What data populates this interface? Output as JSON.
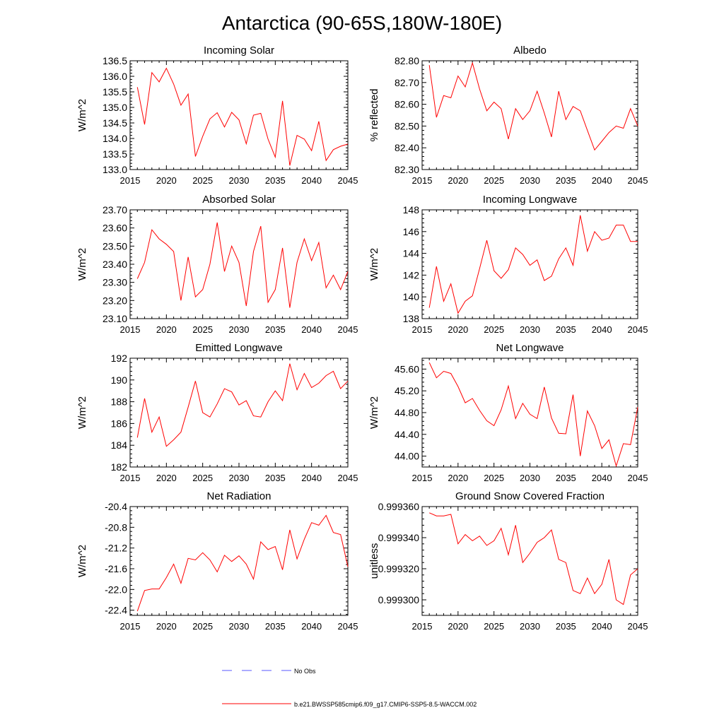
{
  "figure_title": "Antarctica (90-65S,180W-180E)",
  "legend": {
    "no_obs_label": "No Obs",
    "model_label": "b.e21.BWSSP585cmip6.f09_g17.CMIP6-SSP5-8.5-WACCM.002",
    "no_obs_color": "#5a5aff",
    "model_color": "#ff0000"
  },
  "chart_data": [
    {
      "type": "line",
      "title": "Incoming Solar",
      "xlabel": "",
      "ylabel": "W/m^2",
      "xlim": [
        2015,
        2045
      ],
      "ylim": [
        133.0,
        136.5
      ],
      "xticks": [
        2015,
        2020,
        2025,
        2030,
        2035,
        2040,
        2045
      ],
      "xticklabels": [
        "2015",
        "2020",
        "2025",
        "2030",
        "2035",
        "2040",
        "2045"
      ],
      "yticks": [
        133.0,
        133.5,
        134.0,
        134.5,
        135.0,
        135.5,
        136.0,
        136.5
      ],
      "yticklabels": [
        "133.0",
        "133.5",
        "134.0",
        "134.5",
        "135.0",
        "135.5",
        "136.0",
        "136.5"
      ],
      "x": [
        2016,
        2017,
        2018,
        2019,
        2020,
        2021,
        2022,
        2023,
        2024,
        2025,
        2026,
        2027,
        2028,
        2029,
        2030,
        2031,
        2032,
        2033,
        2034,
        2035,
        2036,
        2037,
        2038,
        2039,
        2040,
        2041,
        2042,
        2043,
        2044,
        2045
      ],
      "series": [
        {
          "name": "b.e21.BWSSP585cmip6.f09_g17.CMIP6-SSP5-8.5-WACCM.002",
          "values": [
            135.65,
            134.45,
            136.12,
            135.82,
            136.26,
            135.75,
            135.07,
            135.43,
            133.42,
            134.07,
            134.63,
            134.83,
            134.37,
            134.84,
            134.6,
            133.83,
            134.75,
            134.81,
            133.98,
            133.4,
            135.21,
            133.13,
            134.1,
            133.98,
            133.61,
            134.55,
            133.29,
            133.64,
            133.75,
            133.82
          ]
        }
      ]
    },
    {
      "type": "line",
      "title": "Albedo",
      "xlabel": "",
      "ylabel": "% reflected",
      "xlim": [
        2015,
        2045
      ],
      "ylim": [
        82.3,
        82.8
      ],
      "xticks": [
        2015,
        2020,
        2025,
        2030,
        2035,
        2040,
        2045
      ],
      "xticklabels": [
        "2015",
        "2020",
        "2025",
        "2030",
        "2035",
        "2040",
        "2045"
      ],
      "yticks": [
        82.3,
        82.4,
        82.5,
        82.6,
        82.7,
        82.8
      ],
      "yticklabels": [
        "82.30",
        "82.40",
        "82.50",
        "82.60",
        "82.70",
        "82.80"
      ],
      "x": [
        2016,
        2017,
        2018,
        2019,
        2020,
        2021,
        2022,
        2023,
        2024,
        2025,
        2026,
        2027,
        2028,
        2029,
        2030,
        2031,
        2032,
        2033,
        2034,
        2035,
        2036,
        2037,
        2038,
        2039,
        2040,
        2041,
        2042,
        2043,
        2044,
        2045
      ],
      "series": [
        {
          "name": "b.e21.BWSSP585cmip6.f09_g17.CMIP6-SSP5-8.5-WACCM.002",
          "values": [
            82.78,
            82.54,
            82.64,
            82.63,
            82.73,
            82.68,
            82.79,
            82.67,
            82.57,
            82.61,
            82.58,
            82.44,
            82.58,
            82.53,
            82.57,
            82.66,
            82.56,
            82.45,
            82.66,
            82.53,
            82.59,
            82.57,
            82.48,
            82.39,
            82.43,
            82.47,
            82.5,
            82.49,
            82.58,
            82.5
          ]
        }
      ]
    },
    {
      "type": "line",
      "title": "Absorbed Solar",
      "xlabel": "",
      "ylabel": "W/m^2",
      "xlim": [
        2015,
        2045
      ],
      "ylim": [
        23.1,
        23.7
      ],
      "xticks": [
        2015,
        2020,
        2025,
        2030,
        2035,
        2040,
        2045
      ],
      "xticklabels": [
        "2015",
        "2020",
        "2025",
        "2030",
        "2035",
        "2040",
        "2045"
      ],
      "yticks": [
        23.1,
        23.2,
        23.3,
        23.4,
        23.5,
        23.6,
        23.7
      ],
      "yticklabels": [
        "23.10",
        "23.20",
        "23.30",
        "23.40",
        "23.50",
        "23.60",
        "23.70"
      ],
      "x": [
        2016,
        2017,
        2018,
        2019,
        2020,
        2021,
        2022,
        2023,
        2024,
        2025,
        2026,
        2027,
        2028,
        2029,
        2030,
        2031,
        2032,
        2033,
        2034,
        2035,
        2036,
        2037,
        2038,
        2039,
        2040,
        2041,
        2042,
        2043,
        2044,
        2045
      ],
      "series": [
        {
          "name": "b.e21.BWSSP585cmip6.f09_g17.CMIP6-SSP5-8.5-WACCM.002",
          "values": [
            23.32,
            23.41,
            23.59,
            23.54,
            23.51,
            23.47,
            23.2,
            23.44,
            23.22,
            23.26,
            23.4,
            23.63,
            23.36,
            23.5,
            23.41,
            23.17,
            23.47,
            23.61,
            23.19,
            23.26,
            23.49,
            23.16,
            23.41,
            23.54,
            23.42,
            23.52,
            23.27,
            23.34,
            23.26,
            23.36
          ]
        }
      ]
    },
    {
      "type": "line",
      "title": "Incoming Longwave",
      "xlabel": "",
      "ylabel": "W/m^2",
      "xlim": [
        2015,
        2045
      ],
      "ylim": [
        138,
        148
      ],
      "xticks": [
        2015,
        2020,
        2025,
        2030,
        2035,
        2040,
        2045
      ],
      "xticklabels": [
        "2015",
        "2020",
        "2025",
        "2030",
        "2035",
        "2040",
        "2045"
      ],
      "yticks": [
        138,
        140,
        142,
        144,
        146,
        148
      ],
      "yticklabels": [
        "138",
        "140",
        "142",
        "144",
        "146",
        "148"
      ],
      "x": [
        2016,
        2017,
        2018,
        2019,
        2020,
        2021,
        2022,
        2023,
        2024,
        2025,
        2026,
        2027,
        2028,
        2029,
        2030,
        2031,
        2032,
        2033,
        2034,
        2035,
        2036,
        2037,
        2038,
        2039,
        2040,
        2041,
        2042,
        2043,
        2044,
        2045
      ],
      "series": [
        {
          "name": "b.e21.BWSSP585cmip6.f09_g17.CMIP6-SSP5-8.5-WACCM.002",
          "values": [
            139.0,
            142.8,
            139.6,
            141.2,
            138.5,
            139.6,
            140.1,
            142.6,
            145.2,
            142.4,
            141.7,
            142.5,
            144.5,
            143.9,
            142.9,
            143.4,
            141.5,
            141.9,
            143.5,
            144.5,
            142.9,
            147.5,
            144.2,
            146.0,
            145.2,
            145.4,
            146.6,
            146.6,
            145.1,
            145.1
          ]
        }
      ]
    },
    {
      "type": "line",
      "title": "Emitted Longwave",
      "xlabel": "",
      "ylabel": "W/m^2",
      "xlim": [
        2015,
        2045
      ],
      "ylim": [
        182,
        192
      ],
      "xticks": [
        2015,
        2020,
        2025,
        2030,
        2035,
        2040,
        2045
      ],
      "xticklabels": [
        "2015",
        "2020",
        "2025",
        "2030",
        "2035",
        "2040",
        "2045"
      ],
      "yticks": [
        182,
        184,
        186,
        188,
        190,
        192
      ],
      "yticklabels": [
        "182",
        "184",
        "186",
        "188",
        "190",
        "192"
      ],
      "x": [
        2016,
        2017,
        2018,
        2019,
        2020,
        2021,
        2022,
        2023,
        2024,
        2025,
        2026,
        2027,
        2028,
        2029,
        2030,
        2031,
        2032,
        2033,
        2034,
        2035,
        2036,
        2037,
        2038,
        2039,
        2040,
        2041,
        2042,
        2043,
        2044,
        2045
      ],
      "series": [
        {
          "name": "b.e21.BWSSP585cmip6.f09_g17.CMIP6-SSP5-8.5-WACCM.002",
          "values": [
            184.7,
            188.3,
            185.2,
            186.6,
            183.9,
            184.5,
            185.2,
            187.5,
            189.9,
            187.0,
            186.6,
            187.8,
            189.2,
            188.9,
            187.7,
            188.1,
            186.7,
            186.6,
            188.0,
            189.0,
            188.1,
            191.5,
            189.1,
            190.6,
            189.3,
            189.7,
            190.4,
            190.8,
            189.2,
            189.9
          ]
        }
      ]
    },
    {
      "type": "line",
      "title": "Net Longwave",
      "xlabel": "",
      "ylabel": "W/m^2",
      "xlim": [
        2015,
        2045
      ],
      "ylim": [
        43.8,
        45.8
      ],
      "xticks": [
        2015,
        2020,
        2025,
        2030,
        2035,
        2040,
        2045
      ],
      "xticklabels": [
        "2015",
        "2020",
        "2025",
        "2030",
        "2035",
        "2040",
        "2045"
      ],
      "yticks": [
        44.0,
        44.4,
        44.8,
        45.2,
        45.6
      ],
      "yticklabels": [
        "44.00",
        "44.40",
        "44.80",
        "45.20",
        "45.60"
      ],
      "x": [
        2016,
        2017,
        2018,
        2019,
        2020,
        2021,
        2022,
        2023,
        2024,
        2025,
        2026,
        2027,
        2028,
        2029,
        2030,
        2031,
        2032,
        2033,
        2034,
        2035,
        2036,
        2037,
        2038,
        2039,
        2040,
        2041,
        2042,
        2043,
        2044,
        2045
      ],
      "series": [
        {
          "name": "b.e21.BWSSP585cmip6.f09_g17.CMIP6-SSP5-8.5-WACCM.002",
          "values": [
            45.72,
            45.44,
            45.56,
            45.52,
            45.28,
            44.98,
            45.06,
            44.84,
            44.65,
            44.56,
            44.85,
            45.29,
            44.69,
            44.97,
            44.77,
            44.69,
            45.27,
            44.7,
            44.42,
            44.41,
            45.13,
            44.0,
            44.83,
            44.56,
            44.14,
            44.3,
            43.82,
            44.23,
            44.21,
            44.9
          ]
        }
      ]
    },
    {
      "type": "line",
      "title": "Net Radiation",
      "xlabel": "",
      "ylabel": "W/m^2",
      "xlim": [
        2015,
        2045
      ],
      "ylim": [
        -22.5,
        -20.4
      ],
      "xticks": [
        2015,
        2020,
        2025,
        2030,
        2035,
        2040,
        2045
      ],
      "xticklabels": [
        "2015",
        "2020",
        "2025",
        "2030",
        "2035",
        "2040",
        "2045"
      ],
      "yticks": [
        -22.4,
        -22.0,
        -21.6,
        -21.2,
        -20.8,
        -20.4
      ],
      "yticklabels": [
        "-22.4",
        "-22.0",
        "-21.6",
        "-21.2",
        "-20.8",
        "-20.4"
      ],
      "x": [
        2016,
        2017,
        2018,
        2019,
        2020,
        2021,
        2022,
        2023,
        2024,
        2025,
        2026,
        2027,
        2028,
        2029,
        2030,
        2031,
        2032,
        2033,
        2034,
        2035,
        2036,
        2037,
        2038,
        2039,
        2040,
        2041,
        2042,
        2043,
        2044,
        2045
      ],
      "series": [
        {
          "name": "b.e21.BWSSP585cmip6.f09_g17.CMIP6-SSP5-8.5-WACCM.002",
          "values": [
            -22.42,
            -22.02,
            -21.99,
            -21.99,
            -21.77,
            -21.51,
            -21.88,
            -21.4,
            -21.43,
            -21.29,
            -21.43,
            -21.66,
            -21.34,
            -21.46,
            -21.35,
            -21.51,
            -21.8,
            -21.08,
            -21.23,
            -21.17,
            -21.62,
            -20.85,
            -21.41,
            -21.03,
            -20.71,
            -20.76,
            -20.57,
            -20.9,
            -20.94,
            -21.56
          ]
        }
      ]
    },
    {
      "type": "line",
      "title": "Ground Snow Covered Fraction",
      "xlabel": "",
      "ylabel": "unitless",
      "xlim": [
        2015,
        2045
      ],
      "ylim": [
        0.99929,
        0.99936
      ],
      "xticks": [
        2015,
        2020,
        2025,
        2030,
        2035,
        2040,
        2045
      ],
      "xticklabels": [
        "2015",
        "2020",
        "2025",
        "2030",
        "2035",
        "2040",
        "2045"
      ],
      "yticks": [
        0.9993,
        0.99932,
        0.99934,
        0.99936
      ],
      "yticklabels": [
        "0.999300",
        "0.999320",
        "0.999340",
        "0.999360"
      ],
      "x": [
        2016,
        2017,
        2018,
        2019,
        2020,
        2021,
        2022,
        2023,
        2024,
        2025,
        2026,
        2027,
        2028,
        2029,
        2030,
        2031,
        2032,
        2033,
        2034,
        2035,
        2036,
        2037,
        2038,
        2039,
        2040,
        2041,
        2042,
        2043,
        2044,
        2045
      ],
      "series": [
        {
          "name": "b.e21.BWSSP585cmip6.f09_g17.CMIP6-SSP5-8.5-WACCM.002",
          "values": [
            0.999356,
            0.999354,
            0.999354,
            0.999355,
            0.999336,
            0.999342,
            0.999338,
            0.999341,
            0.999335,
            0.999338,
            0.999346,
            0.999329,
            0.999348,
            0.999324,
            0.99933,
            0.999337,
            0.99934,
            0.999345,
            0.999326,
            0.999324,
            0.999306,
            0.999304,
            0.999314,
            0.999304,
            0.99931,
            0.999326,
            0.9993,
            0.999297,
            0.999316,
            0.99932
          ]
        }
      ]
    }
  ]
}
